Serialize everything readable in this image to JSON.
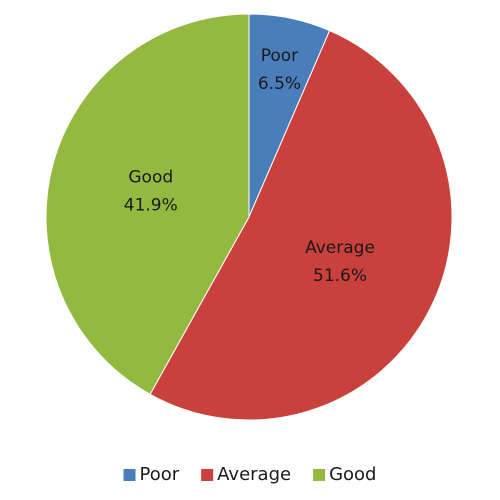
{
  "chart_data": {
    "type": "pie",
    "categories": [
      "Poor",
      "Average",
      "Good"
    ],
    "values": [
      6.5,
      51.6,
      41.9
    ],
    "value_labels": [
      "6.5%",
      "51.6%",
      "41.9%"
    ],
    "colors": [
      "#4a7ebb",
      "#c9403c",
      "#93b940"
    ],
    "legend": "bottom"
  }
}
